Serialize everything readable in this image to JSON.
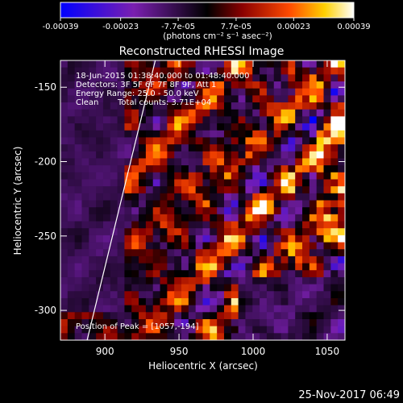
{
  "colorbar": {
    "tick_labels": [
      "-0.00039",
      "-0.00023",
      "-7.7e-05",
      "7.7e-05",
      "0.00023",
      "0.00039"
    ],
    "tick_values": [
      -0.00039,
      -0.00023,
      -7.7e-05,
      7.7e-05,
      0.00023,
      0.00039
    ],
    "range": [
      -0.00039,
      0.00039
    ],
    "units_label": "(photons cm⁻² s⁻¹ asec⁻²)",
    "colors": [
      "#0000ff",
      "#7a1fb0",
      "#000000",
      "#8a0000",
      "#ff4a00",
      "#ffd000",
      "#ffffff"
    ]
  },
  "chart_data": {
    "type": "heatmap",
    "title": "Reconstructed RHESSI Image",
    "xlabel": "Heliocentric X (arcsec)",
    "ylabel": "Heliocentric Y (arcsec)",
    "xlim": [
      870,
      1062
    ],
    "ylim": [
      -320,
      -132
    ],
    "x_ticks": [
      900,
      950,
      1000,
      1050
    ],
    "y_ticks": [
      -150,
      -200,
      -250,
      -300
    ],
    "annotations": {
      "time": "18-Jun-2015 01:38:40.000 to 01:48:40.000",
      "detectors": "Detectors: 3F 5F 6F 7F 8F 9F, Att 1",
      "energy": "Energy Range: 25.0 - 50.0 keV",
      "method": "Clean",
      "counts": "Total counts: 3.71E+04",
      "peak": "Position of Peak = [1057,-194]"
    },
    "peak": [
      1057,
      -194
    ],
    "limb_line": [
      [
        888,
        -320
      ],
      [
        934,
        -132
      ]
    ]
  },
  "footer": {
    "date": "25-Nov-2017 06:49"
  }
}
